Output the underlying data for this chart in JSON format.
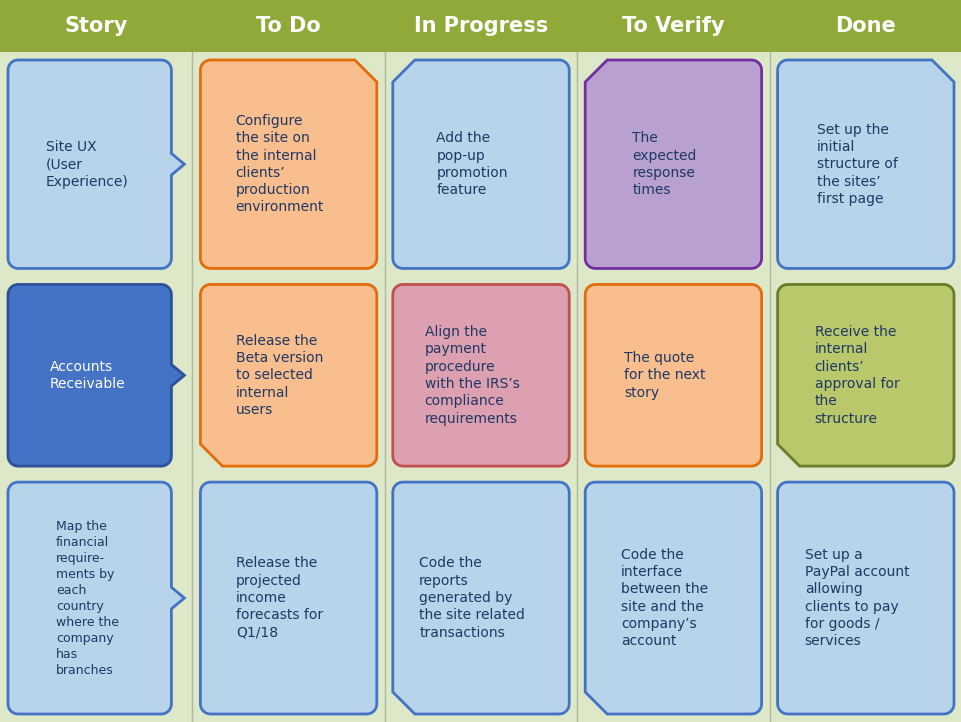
{
  "background_color": "#dce8c8",
  "header_color": "#8faa38",
  "header_text_color": "#ffffff",
  "header_font_size": 15,
  "columns": [
    "Story",
    "To Do",
    "In Progress",
    "To Verify",
    "Done"
  ],
  "fig_width": 9.62,
  "fig_height": 7.22,
  "cards": [
    {
      "col": 0,
      "row": 0,
      "text": "Site UX\n(User\nExperience)",
      "bg": "#b8d4ea",
      "border": "#4472c4",
      "text_color": "#1f3864",
      "shape": "arrow_right",
      "fontsize": 10
    },
    {
      "col": 0,
      "row": 1,
      "text": "Accounts\nReceivable",
      "bg": "#4472c4",
      "border": "#2e5099",
      "text_color": "#ffffff",
      "shape": "arrow_right",
      "fontsize": 10
    },
    {
      "col": 0,
      "row": 2,
      "text": "Map the\nfinancial\nrequire-\nments by\neach\ncountry\nwhere the\ncompany\nhas\nbranches",
      "bg": "#b8d4ea",
      "border": "#4472c4",
      "text_color": "#1f3864",
      "shape": "arrow_right",
      "fontsize": 9
    },
    {
      "col": 1,
      "row": 0,
      "text": "Configure\nthe site on\nthe internal\nclients’\nproduction\nenvironment",
      "bg": "#f9be8d",
      "border": "#e36c0a",
      "text_color": "#1f3864",
      "shape": "notch_tr",
      "fontsize": 10
    },
    {
      "col": 1,
      "row": 1,
      "text": "Release the\nBeta version\nto selected\ninternal\nusers",
      "bg": "#f9be8d",
      "border": "#e36c0a",
      "text_color": "#1f3864",
      "shape": "notch_bl",
      "fontsize": 10
    },
    {
      "col": 1,
      "row": 2,
      "text": "Release the\nprojected\nincome\nforecasts for\nQ1/18",
      "bg": "#b8d4ea",
      "border": "#4472c4",
      "text_color": "#1f3864",
      "shape": "round",
      "fontsize": 10
    },
    {
      "col": 2,
      "row": 0,
      "text": "Add the\npop-up\npromotion\nfeature",
      "bg": "#b8d4ea",
      "border": "#4472c4",
      "text_color": "#1f3864",
      "shape": "notch_tl",
      "fontsize": 10
    },
    {
      "col": 2,
      "row": 1,
      "text": "Align the\npayment\nprocedure\nwith the IRS’s\ncompliance\nrequirements",
      "bg": "#dda0b0",
      "border": "#c0504d",
      "text_color": "#1f3864",
      "shape": "round",
      "fontsize": 10
    },
    {
      "col": 2,
      "row": 2,
      "text": "Code the\nreports\ngenerated by\nthe site related\ntransactions",
      "bg": "#b8d4ea",
      "border": "#4472c4",
      "text_color": "#1f3864",
      "shape": "notch_bl",
      "fontsize": 10
    },
    {
      "col": 3,
      "row": 0,
      "text": "The\nexpected\nresponse\ntimes",
      "bg": "#b8a0d0",
      "border": "#7030a0",
      "text_color": "#1f3864",
      "shape": "notch_tl",
      "fontsize": 10
    },
    {
      "col": 3,
      "row": 1,
      "text": "The quote\nfor the next\nstory",
      "bg": "#f9be8d",
      "border": "#e36c0a",
      "text_color": "#1f3864",
      "shape": "round",
      "fontsize": 10
    },
    {
      "col": 3,
      "row": 2,
      "text": "Code the\ninterface\nbetween the\nsite and the\ncompany’s\naccount",
      "bg": "#b8d4ea",
      "border": "#4472c4",
      "text_color": "#1f3864",
      "shape": "notch_bl",
      "fontsize": 10
    },
    {
      "col": 4,
      "row": 0,
      "text": "Set up the\ninitial\nstructure of\nthe sites’\nfirst page",
      "bg": "#b8d4ea",
      "border": "#4472c4",
      "text_color": "#1f3864",
      "shape": "notch_tr",
      "fontsize": 10
    },
    {
      "col": 4,
      "row": 1,
      "text": "Receive the\ninternal\nclients’\napproval for\nthe\nstructure",
      "bg": "#b8c86a",
      "border": "#6a7c28",
      "text_color": "#1f3864",
      "shape": "notch_bl",
      "fontsize": 10
    },
    {
      "col": 4,
      "row": 2,
      "text": "Set up a\nPayPal account\nallowing\nclients to pay\nfor goods /\nservices",
      "bg": "#b8d4ea",
      "border": "#4472c4",
      "text_color": "#1f3864",
      "shape": "round",
      "fontsize": 10
    }
  ]
}
